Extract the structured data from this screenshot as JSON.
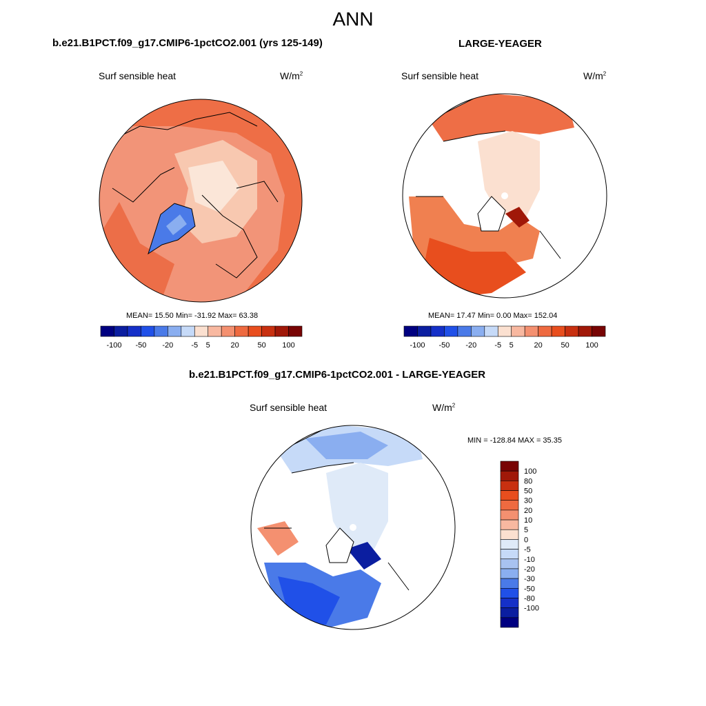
{
  "figure": {
    "title": "ANN",
    "panel_top_left": {
      "title": "b.e21.B1PCT.f09_g17.CMIP6-1pctCO2.001 (yrs 125-149)",
      "variable": "Surf sensible heat",
      "units": "W/m",
      "units_sup": "2",
      "stats": "MEAN=  15.50  Min= -31.92  Max=  63.38",
      "mean": 15.5,
      "min": -31.92,
      "max": 63.38
    },
    "panel_top_right": {
      "title": "LARGE-YEAGER",
      "variable": "Surf sensible heat",
      "units": "W/m",
      "units_sup": "2",
      "stats": "MEAN=  17.47  Min=   0.00  Max= 152.04",
      "mean": 17.47,
      "min": 0.0,
      "max": 152.04
    },
    "panel_diff": {
      "title": "b.e21.B1PCT.f09_g17.CMIP6-1pctCO2.001 - LARGE-YEAGER",
      "variable": "Surf sensible heat",
      "units": "W/m",
      "units_sup": "2",
      "stats": "MIN = -128.84 MAX =  35.35",
      "min": -128.84,
      "max": 35.35
    },
    "colorbar_h": {
      "colors": [
        "#000080",
        "#0b1ea0",
        "#1530c8",
        "#2050e8",
        "#4a7ae8",
        "#8aaef0",
        "#c6daf8",
        "#fbe0d0",
        "#f8b8a0",
        "#f49070",
        "#ee6a40",
        "#e84e1e",
        "#c83010",
        "#a01808",
        "#780404"
      ],
      "tick_labels": [
        "-100",
        "-50",
        "-20",
        "-5",
        "5",
        "20",
        "50",
        "100"
      ],
      "tick_boundaries": [
        1,
        3,
        5,
        7,
        8,
        10,
        12,
        14
      ]
    },
    "colorbar_v": {
      "colors_top_to_bottom": [
        "#780404",
        "#a01808",
        "#c83010",
        "#e84e1e",
        "#ee6a40",
        "#f49070",
        "#f8b8a0",
        "#fbe0d0",
        "#dfeaf8",
        "#c6daf8",
        "#a8c2f0",
        "#8aaef0",
        "#4a7ae8",
        "#2050e8",
        "#1530c8",
        "#0b1ea0",
        "#000080"
      ],
      "tick_labels": [
        "100",
        "80",
        "50",
        "30",
        "20",
        "10",
        "5",
        "0",
        "-5",
        "-10",
        "-20",
        "-30",
        "-50",
        "-80",
        "-100"
      ]
    }
  }
}
